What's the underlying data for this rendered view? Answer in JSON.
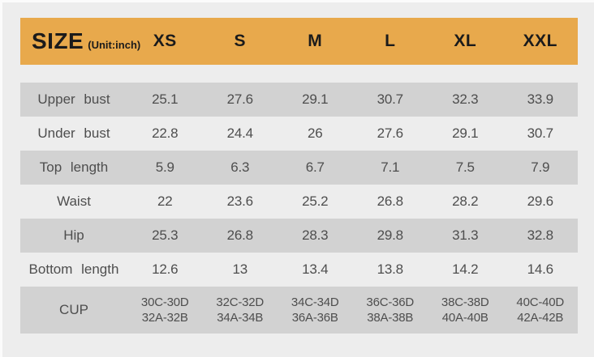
{
  "colors": {
    "page_background": "#EDEDED",
    "header_background": "#E8A94C",
    "shaded_row_background": "#D2D2D2",
    "body_text": "#4E4E4E",
    "header_text": "#1B1B1B"
  },
  "table": {
    "title": "SIZE",
    "unit": "(Unit:inch)",
    "columns": [
      "XS",
      "S",
      "M",
      "L",
      "XL",
      "XXL"
    ],
    "rows": [
      {
        "label": "Upper bust",
        "shaded": true,
        "values": [
          "25.1",
          "27.6",
          "29.1",
          "30.7",
          "32.3",
          "33.9"
        ]
      },
      {
        "label": "Under bust",
        "shaded": false,
        "values": [
          "22.8",
          "24.4",
          "26",
          "27.6",
          "29.1",
          "30.7"
        ]
      },
      {
        "label": "Top length",
        "shaded": true,
        "values": [
          "5.9",
          "6.3",
          "6.7",
          "7.1",
          "7.5",
          "7.9"
        ]
      },
      {
        "label": "Waist",
        "shaded": false,
        "values": [
          "22",
          "23.6",
          "25.2",
          "26.8",
          "28.2",
          "29.6"
        ]
      },
      {
        "label": "Hip",
        "shaded": true,
        "values": [
          "25.3",
          "26.8",
          "28.3",
          "29.8",
          "31.3",
          "32.8"
        ]
      },
      {
        "label": "Bottom length",
        "shaded": false,
        "values": [
          "12.6",
          "13",
          "13.4",
          "13.8",
          "14.2",
          "14.6"
        ]
      },
      {
        "label": "CUP",
        "shaded": true,
        "two_line": true,
        "values": [
          [
            "30C-30D",
            "32A-32B"
          ],
          [
            "32C-32D",
            "34A-34B"
          ],
          [
            "34C-34D",
            "36A-36B"
          ],
          [
            "36C-36D",
            "38A-38B"
          ],
          [
            "38C-38D",
            "40A-40B"
          ],
          [
            "40C-40D",
            "42A-42B"
          ]
        ]
      }
    ]
  },
  "chart_data": {
    "type": "table",
    "title": "SIZE (Unit:inch)",
    "columns": [
      "",
      "XS",
      "S",
      "M",
      "L",
      "XL",
      "XXL"
    ],
    "rows": [
      [
        "Upper bust",
        "25.1",
        "27.6",
        "29.1",
        "30.7",
        "32.3",
        "33.9"
      ],
      [
        "Under bust",
        "22.8",
        "24.4",
        "26",
        "27.6",
        "29.1",
        "30.7"
      ],
      [
        "Top length",
        "5.9",
        "6.3",
        "6.7",
        "7.1",
        "7.5",
        "7.9"
      ],
      [
        "Waist",
        "22",
        "23.6",
        "25.2",
        "26.8",
        "28.2",
        "29.6"
      ],
      [
        "Hip",
        "25.3",
        "26.8",
        "28.3",
        "29.8",
        "31.3",
        "32.8"
      ],
      [
        "Bottom length",
        "12.6",
        "13",
        "13.4",
        "13.8",
        "14.2",
        "14.6"
      ],
      [
        "CUP",
        "30C-30D 32A-32B",
        "32C-32D 34A-34B",
        "34C-34D 36A-36B",
        "36C-36D 38A-38B",
        "38C-38D 40A-40B",
        "40C-40D 42A-42B"
      ]
    ]
  }
}
